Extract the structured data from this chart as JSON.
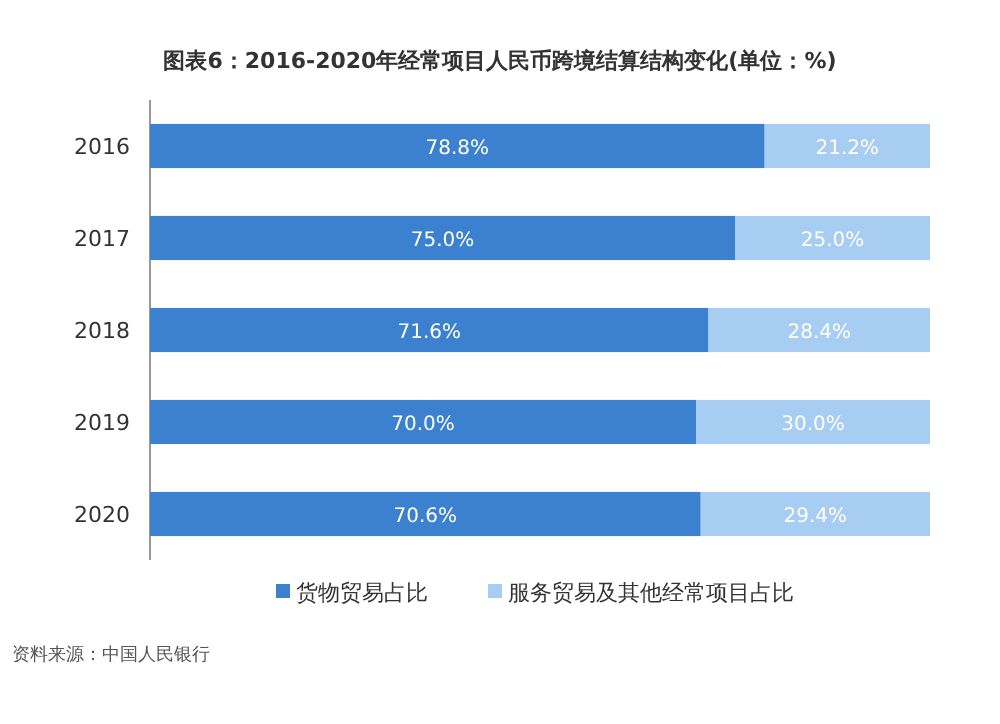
{
  "chart_data": {
    "type": "bar",
    "orientation": "horizontal",
    "stacked": true,
    "legend": "bottom",
    "title": "图表6：2016-2020年经常项目人民币跨境结算结构变化(单位：%)",
    "categories": [
      "2016",
      "2017",
      "2018",
      "2019",
      "2020"
    ],
    "series": [
      {
        "name": "货物贸易占比",
        "color": "#3c80d0",
        "values": [
          78.8,
          75.0,
          71.6,
          70.0,
          70.6
        ],
        "value_labels": [
          "78.8%",
          "75.0%",
          "71.6%",
          "70.0%",
          "70.6%"
        ]
      },
      {
        "name": "服务贸易及其他经常项目占比",
        "color": "#a8cdf2",
        "values": [
          21.2,
          25.0,
          28.4,
          30.0,
          29.4
        ],
        "value_labels": [
          "21.2%",
          "25.0%",
          "28.4%",
          "30.0%",
          "29.4%"
        ]
      }
    ],
    "annotations": [
      "资料来源：中国人民银行"
    ]
  }
}
